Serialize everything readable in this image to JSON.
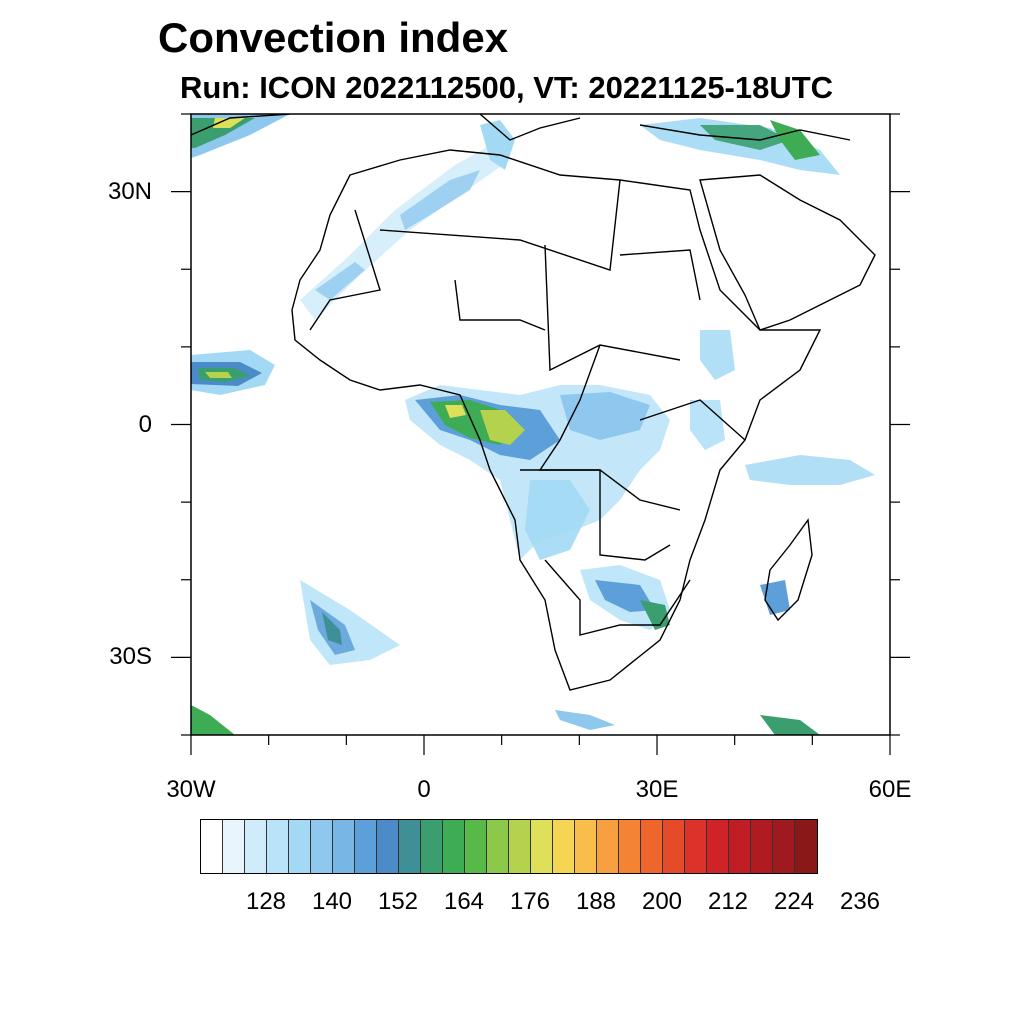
{
  "title": "Convection index",
  "subtitle": "Run: ICON 2022112500,  VT: 20221125-18UTC",
  "map": {
    "x_ticks": [
      {
        "label": "30W",
        "value": -30
      },
      {
        "label": "0",
        "value": 0
      },
      {
        "label": "30E",
        "value": 30
      },
      {
        "label": "60E",
        "value": 60
      }
    ],
    "y_ticks": [
      {
        "label": "30N",
        "value": 30
      },
      {
        "label": "0",
        "value": 0
      },
      {
        "label": "30S",
        "value": -30
      }
    ],
    "lon_range": [
      -30,
      60
    ],
    "lat_range": [
      -40,
      40
    ]
  },
  "colorbar": {
    "colors": [
      "#ffffff",
      "#e8f5fc",
      "#d0ecfa",
      "#b8e3f8",
      "#a3d9f5",
      "#8ec8ef",
      "#78b6e6",
      "#5d9fd8",
      "#4a8bc8",
      "#3e8f96",
      "#3a9e6f",
      "#3eac55",
      "#57b948",
      "#8cc84a",
      "#b4d24d",
      "#dfe05a",
      "#f5d552",
      "#f9be49",
      "#f8a03f",
      "#f48434",
      "#ef662c",
      "#e54b2a",
      "#db3329",
      "#cf2328",
      "#c11d25",
      "#b01b22",
      "#9e1a1e",
      "#8b1818"
    ],
    "labels": [
      "128",
      "140",
      "152",
      "164",
      "176",
      "188",
      "200",
      "212",
      "224",
      "236"
    ]
  }
}
